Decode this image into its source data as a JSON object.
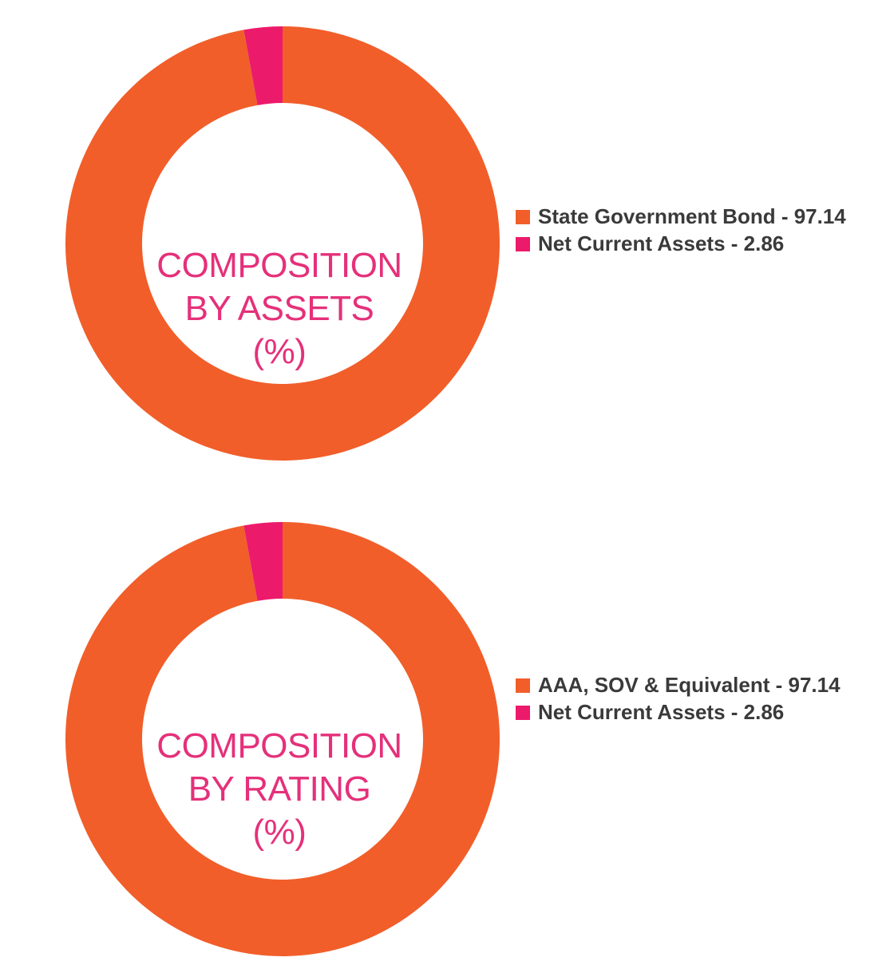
{
  "colors": {
    "orange": "#f15e2a",
    "pink": "#ec1a6a",
    "title": "#e5307a",
    "legend_text": "#3a3a3a"
  },
  "chart_data": [
    {
      "type": "pie",
      "variant": "donut",
      "title_lines": [
        "COMPOSITION",
        "BY ASSETS",
        "(%)"
      ],
      "legend_position": "right",
      "slices": [
        {
          "label": "State Government Bond - 97.14",
          "value": 97.14,
          "color": "#f15e2a"
        },
        {
          "label": "Net Current Assets - 2.86",
          "value": 2.86,
          "color": "#ec1a6a"
        }
      ]
    },
    {
      "type": "pie",
      "variant": "donut",
      "title_lines": [
        "COMPOSITION",
        "BY RATING",
        "(%)"
      ],
      "legend_position": "right",
      "slices": [
        {
          "label": "AAA, SOV & Equivalent - 97.14",
          "value": 97.14,
          "color": "#f15e2a"
        },
        {
          "label": "Net Current Assets - 2.86",
          "value": 2.86,
          "color": "#ec1a6a"
        }
      ]
    }
  ]
}
